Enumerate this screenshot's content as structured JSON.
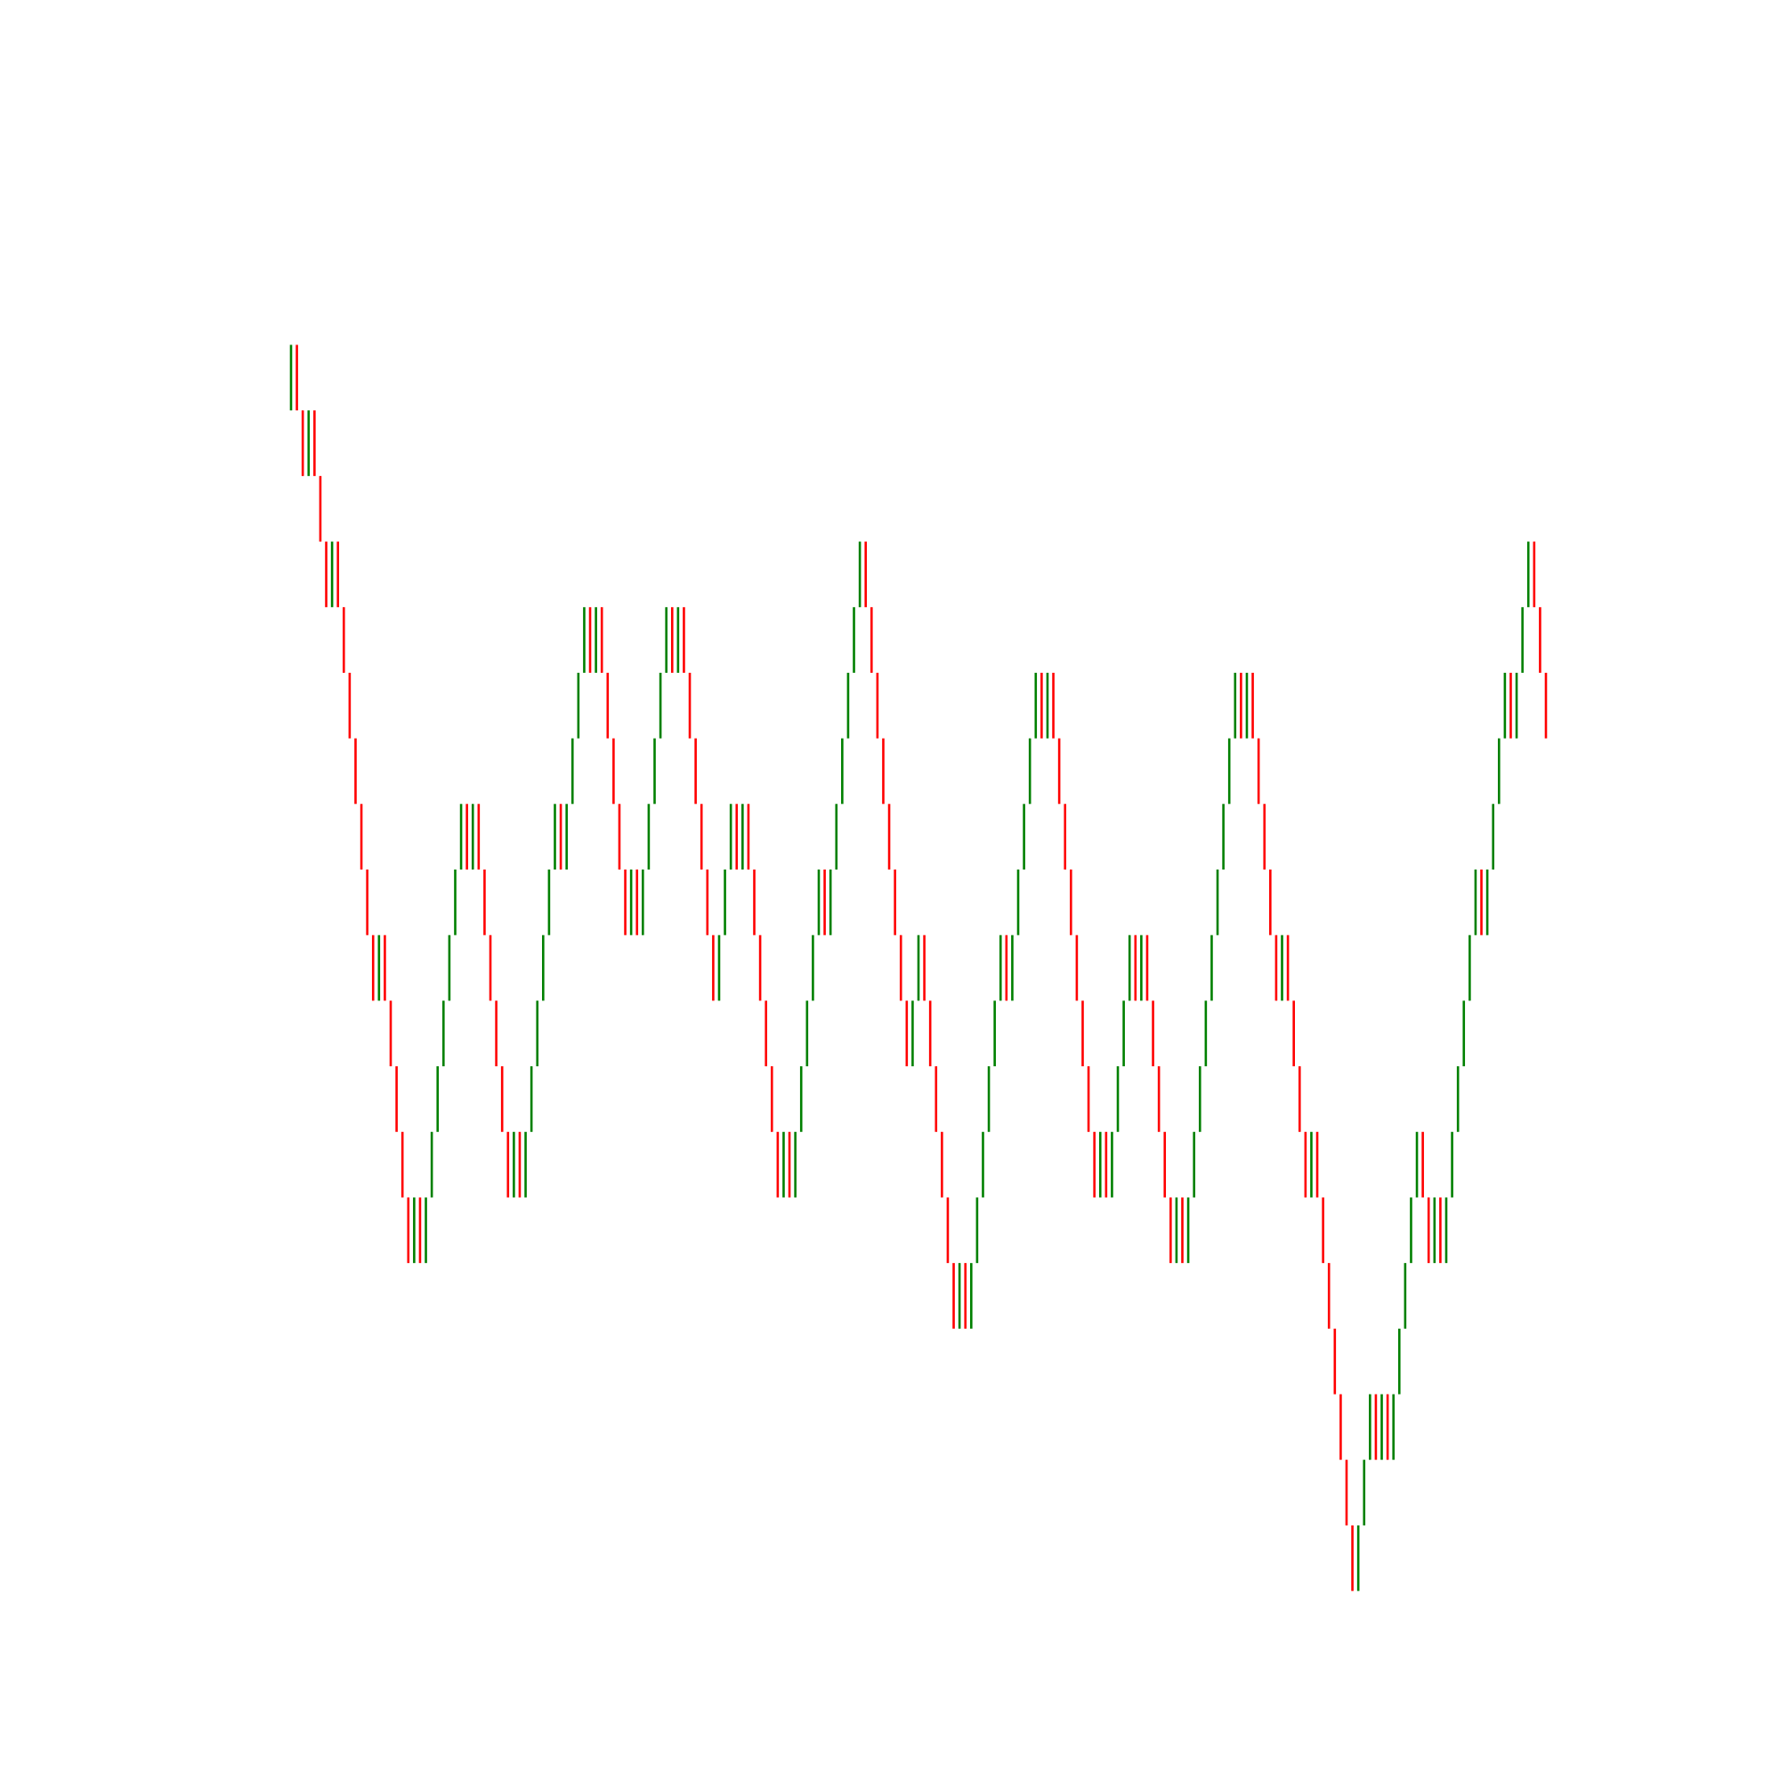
{
  "chart_data": {
    "type": "renko",
    "up_color": "#008000",
    "down_color": "#ff0000",
    "ylim": [
      -2,
      24
    ],
    "levels": [
      18,
      19,
      18,
      17,
      18,
      17,
      16,
      15,
      16,
      15,
      14,
      13,
      12,
      11,
      10,
      9,
      10,
      9,
      8,
      7,
      6,
      5,
      6,
      5,
      6,
      7,
      8,
      9,
      10,
      11,
      12,
      11,
      12,
      11,
      10,
      9,
      8,
      7,
      6,
      7,
      6,
      7,
      8,
      9,
      10,
      11,
      12,
      11,
      12,
      13,
      14,
      15,
      14,
      15,
      14,
      13,
      12,
      11,
      10,
      11,
      10,
      11,
      12,
      13,
      14,
      15,
      14,
      15,
      14,
      13,
      12,
      11,
      10,
      9,
      10,
      11,
      12,
      11,
      12,
      11,
      10,
      9,
      8,
      7,
      6,
      7,
      6,
      7,
      8,
      9,
      10,
      11,
      10,
      11,
      12,
      13,
      14,
      15,
      16,
      15,
      14,
      13,
      12,
      11,
      10,
      9,
      8,
      9,
      10,
      9,
      8,
      7,
      6,
      5,
      4,
      5,
      4,
      5,
      6,
      7,
      8,
      9,
      10,
      9,
      10,
      11,
      12,
      13,
      14,
      13,
      14,
      13,
      12,
      11,
      10,
      9,
      8,
      7,
      6,
      7,
      6,
      7,
      8,
      9,
      10,
      9,
      10,
      9,
      8,
      7,
      6,
      5,
      6,
      5,
      6,
      7,
      8,
      9,
      10,
      11,
      12,
      13,
      14,
      13,
      14,
      13,
      12,
      11,
      10,
      9,
      10,
      9,
      8,
      7,
      6,
      7,
      6,
      5,
      4,
      3,
      2,
      1,
      0,
      1,
      2,
      3,
      2,
      3,
      2,
      3,
      4,
      5,
      6,
      7,
      6,
      5,
      6,
      5,
      6,
      7,
      8,
      9,
      10,
      11,
      10,
      11,
      12,
      13,
      14,
      13,
      14,
      15,
      16,
      15,
      14,
      13
    ]
  }
}
